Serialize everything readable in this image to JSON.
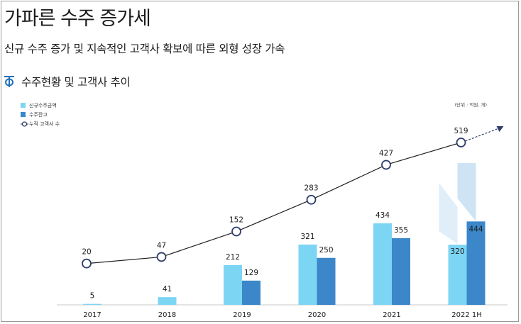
{
  "header": {
    "title": "가파른 수주 증가세",
    "subtitle": "신규 수주 증가 및 지속적인 고객사 확보에 따른 외형 성장 가속",
    "section_title": "수주현황 및 고객사 추이"
  },
  "icons": {
    "section": "section-marker-icon",
    "arrow": "projection-arrow-icon"
  },
  "colors": {
    "new_orders": "#7dd5f4",
    "backlog": "#3b87c9",
    "line": "#1f1f1f",
    "marker": "#2e3d6b",
    "projection": "#2e3d6b",
    "section_icon": "#1f6fb8"
  },
  "chart_data": {
    "type": "bar",
    "title": "수주현황 및 고객사 추이",
    "unit_note": "(단위 : 억원, 개)",
    "categories": [
      "2017",
      "2018",
      "2019",
      "2020",
      "2021",
      "2022 1H"
    ],
    "series": [
      {
        "name": "신규수주금액",
        "type": "bar",
        "values": [
          5,
          41,
          212,
          321,
          434,
          320
        ]
      },
      {
        "name": "수주잔고",
        "type": "bar",
        "values": [
          null,
          null,
          129,
          250,
          355,
          444
        ]
      },
      {
        "name": "누적 고객사 수",
        "type": "line",
        "values": [
          20,
          47,
          152,
          283,
          427,
          519
        ]
      }
    ],
    "legend": [
      "신규수주금액",
      "수주잔고",
      "누적 고객사 수"
    ],
    "legend_position": "top-left",
    "projection": "dashed arrow extending the cumulative customer line beyond 2022 1H",
    "xlabel": "",
    "ylabel": "",
    "ylim_bars": [
      0,
      480
    ],
    "ylim_line": [
      0,
      560
    ],
    "grid": false
  }
}
